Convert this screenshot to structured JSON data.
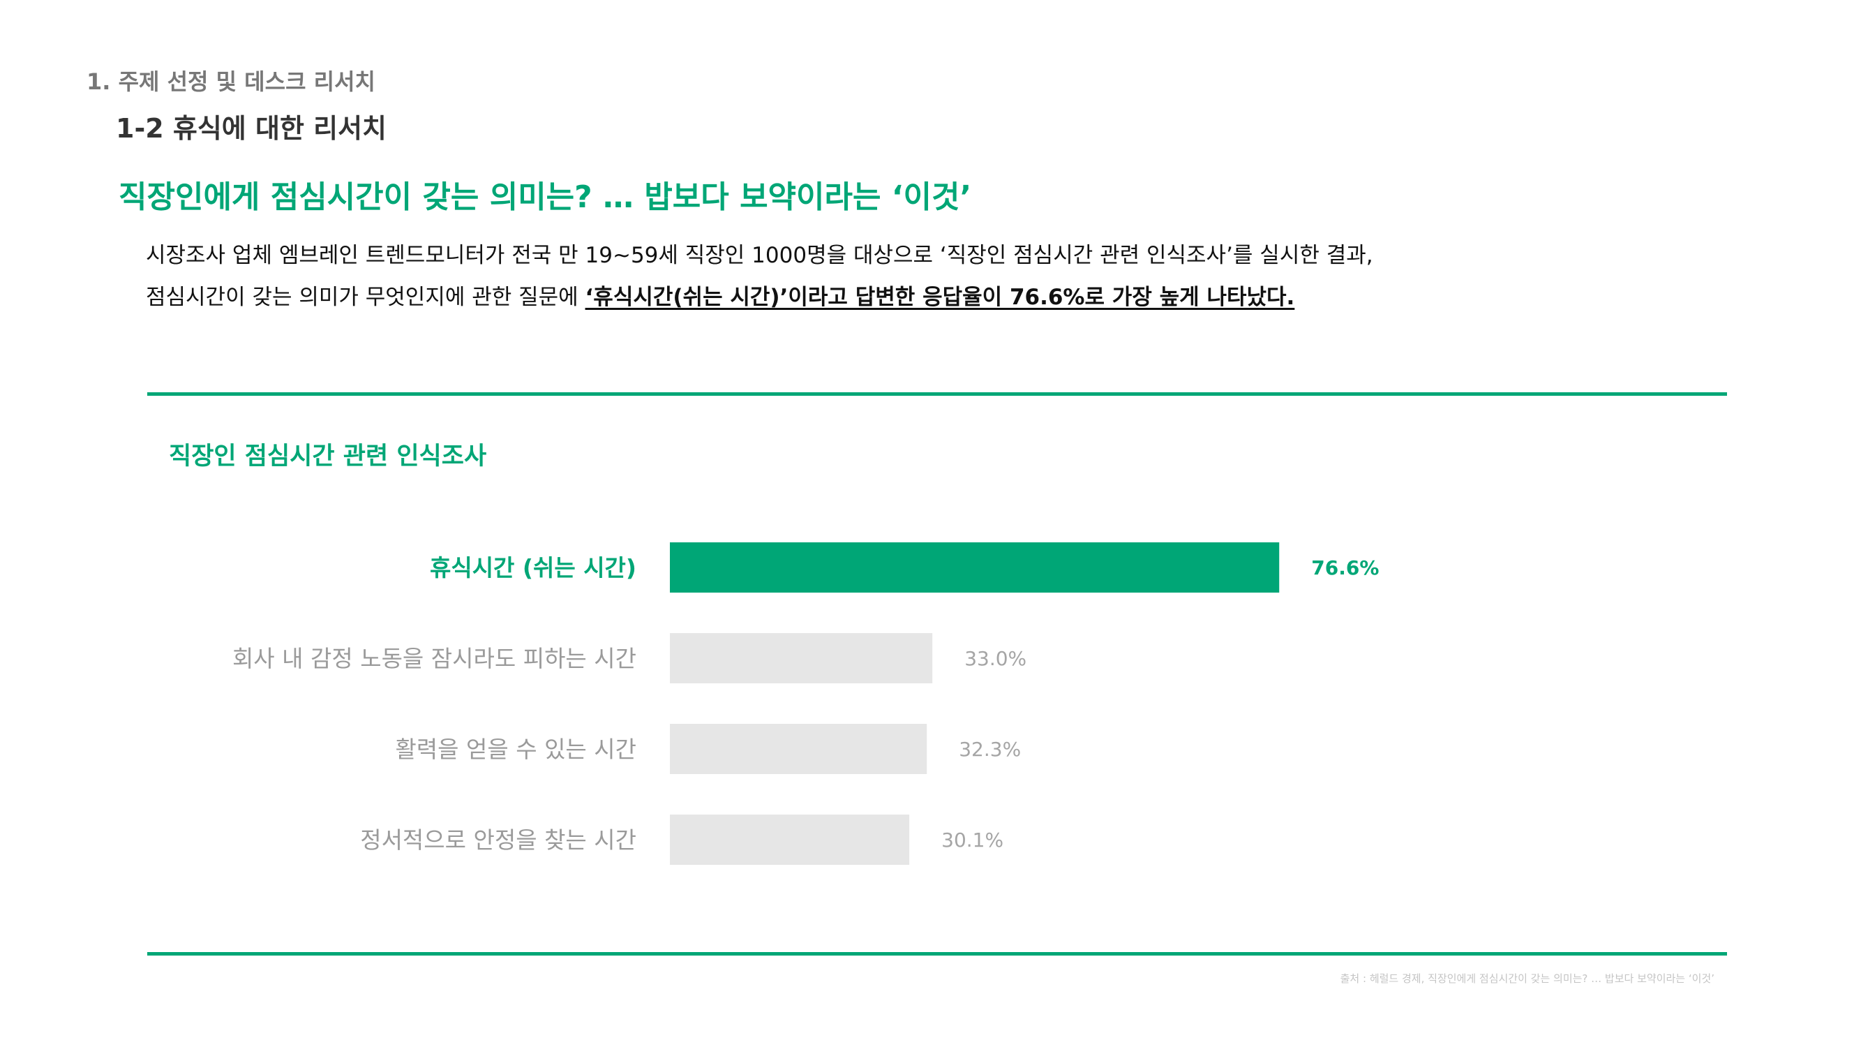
{
  "header": {
    "section": "1. 주제 선정 및 데스크 리서치",
    "subsection": "1-2 휴식에 대한 리서치"
  },
  "headline": "직장인에게 점심시간이 갖는 의미는? … 밥보다 보약이라는 ‘이것’",
  "body": {
    "line1": "시장조사 업체 엠브레인 트렌드모니터가 전국 만 19~59세 직장인 1000명을 대상으로 ‘직장인 점심시간 관련 인식조사’를 실시한 결과,",
    "line2_prefix": "점심시간이 갖는 의미가 무엇인지에 관한 질문에 ",
    "line2_emphasis": "‘휴식시간(쉬는 시간)’이라고 답변한 응답율이 76.6%로 가장 높게 나타났다."
  },
  "source": "출처 : 헤럴드 경제, 직장인에게 점심시간이 갖는 의미는? … 밥보다 보약이라는 ‘이것’",
  "colors": {
    "accent": "#00a676",
    "bar_muted": "#e6e6e6",
    "label_muted": "#9a9a9a",
    "value_muted": "#a5a5a5"
  },
  "chart_data": {
    "type": "bar",
    "orientation": "horizontal",
    "title": "직장인 점심시간 관련 인식조사",
    "categories": [
      "휴식시간 (쉬는 시간)",
      "회사 내 감정 노동을 잠시라도 피하는 시간",
      "활력을 얻을 수 있는 시간",
      "정서적으로 안정을 찾는 시간"
    ],
    "values": [
      76.6,
      33.0,
      32.3,
      30.1
    ],
    "value_labels": [
      "76.6%",
      "33.0%",
      "32.3%",
      "30.1%"
    ],
    "highlight_index": 0,
    "xlim": [
      0,
      100
    ],
    "grid": false,
    "legend": false
  }
}
